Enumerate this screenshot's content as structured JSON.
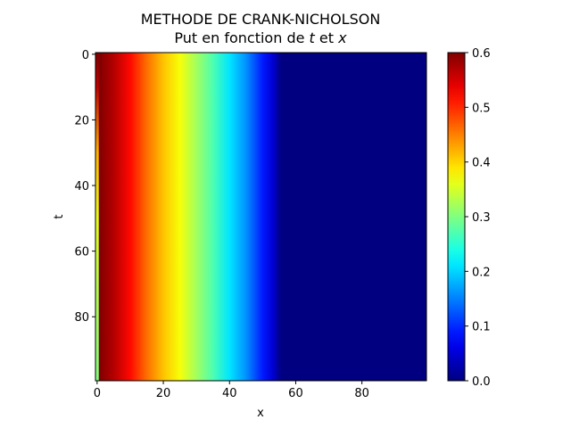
{
  "chart_data": {
    "type": "heatmap",
    "title_line1": "METHODE DE CRANK-NICHOLSON",
    "title_line2_prefix": "Put en fonction de ",
    "title_line2_var1": "t",
    "title_line2_mid": " et ",
    "title_line2_var2": "x",
    "xlabel": "x",
    "ylabel": "t",
    "x_range": [
      0,
      99
    ],
    "y_range": [
      0,
      99
    ],
    "y_inverted": true,
    "x_ticks": [
      0,
      20,
      40,
      60,
      80
    ],
    "y_ticks": [
      0,
      20,
      40,
      60,
      80
    ],
    "colormap": "jet",
    "color_range": [
      0.0,
      0.6
    ],
    "colorbar_ticks": [
      "0.0",
      "0.1",
      "0.2",
      "0.3",
      "0.4",
      "0.5",
      "0.6"
    ],
    "value_profile_by_x": {
      "x": [
        0,
        1,
        2,
        5,
        10,
        15,
        20,
        25,
        30,
        35,
        40,
        45,
        50,
        53,
        55,
        56,
        99
      ],
      "value": [
        0.6,
        0.6,
        0.59,
        0.57,
        0.52,
        0.46,
        0.41,
        0.37,
        0.32,
        0.27,
        0.21,
        0.16,
        0.09,
        0.05,
        0.01,
        0.0,
        0.0
      ]
    },
    "boundary_column_x0": {
      "t": [
        0,
        10,
        30,
        50,
        70,
        99
      ],
      "value": [
        0.6,
        0.56,
        0.42,
        0.36,
        0.33,
        0.3
      ]
    },
    "grid": false
  }
}
